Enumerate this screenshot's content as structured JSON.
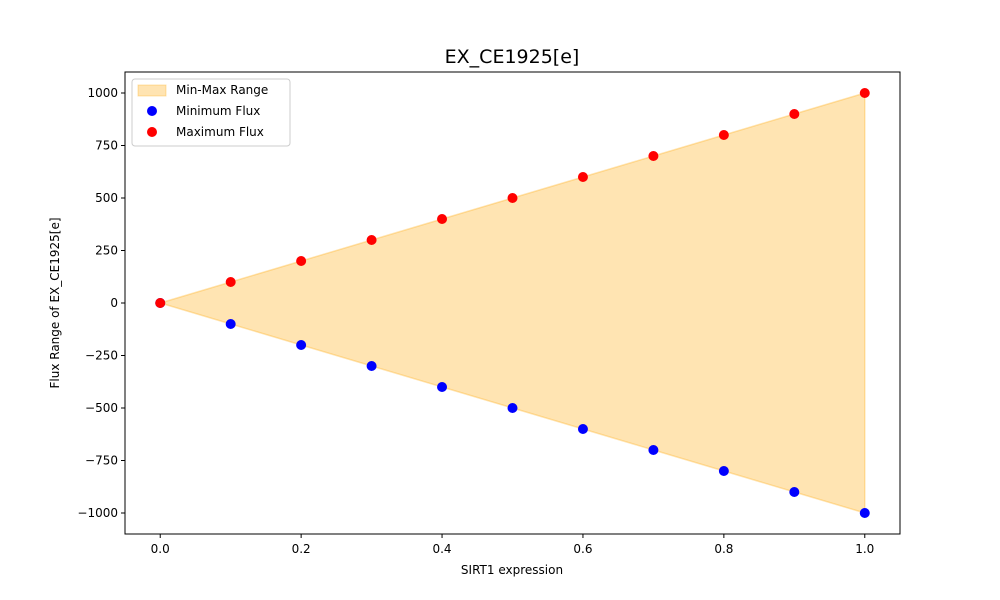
{
  "chart_data": {
    "type": "scatter",
    "title": "EX_CE1925[e]",
    "xlabel": "SIRT1 expression",
    "ylabel": "Flux Range of EX_CE1925[e]",
    "xlim": [
      -0.05,
      1.05
    ],
    "ylim": [
      -1100,
      1100
    ],
    "xticks": [
      0.0,
      0.2,
      0.4,
      0.6,
      0.8,
      1.0
    ],
    "xtick_labels": [
      "0.0",
      "0.2",
      "0.4",
      "0.6",
      "0.8",
      "1.0"
    ],
    "yticks": [
      1000,
      750,
      500,
      250,
      0,
      -250,
      -500,
      -750,
      -1000
    ],
    "ytick_labels": [
      "1000",
      "750",
      "500",
      "250",
      "0",
      "−250",
      "−500",
      "−750",
      "−1000"
    ],
    "x": [
      0.0,
      0.1,
      0.2,
      0.3,
      0.4,
      0.5,
      0.6,
      0.7,
      0.8,
      0.9,
      1.0
    ],
    "series": [
      {
        "name": "Minimum Flux",
        "color": "#0000ff",
        "values": [
          0,
          -100,
          -200,
          -300,
          -400,
          -500,
          -600,
          -700,
          -800,
          -900,
          -1000
        ]
      },
      {
        "name": "Maximum Flux",
        "color": "#ff0000",
        "values": [
          0,
          100,
          200,
          300,
          400,
          500,
          600,
          700,
          800,
          900,
          1000
        ]
      }
    ],
    "fill": {
      "name": "Min-Max Range",
      "color": "#ffa500",
      "opacity": 0.3
    },
    "legend": {
      "position": "top-left",
      "entries": [
        "Min-Max Range",
        "Minimum Flux",
        "Maximum Flux"
      ]
    },
    "grid": false
  }
}
